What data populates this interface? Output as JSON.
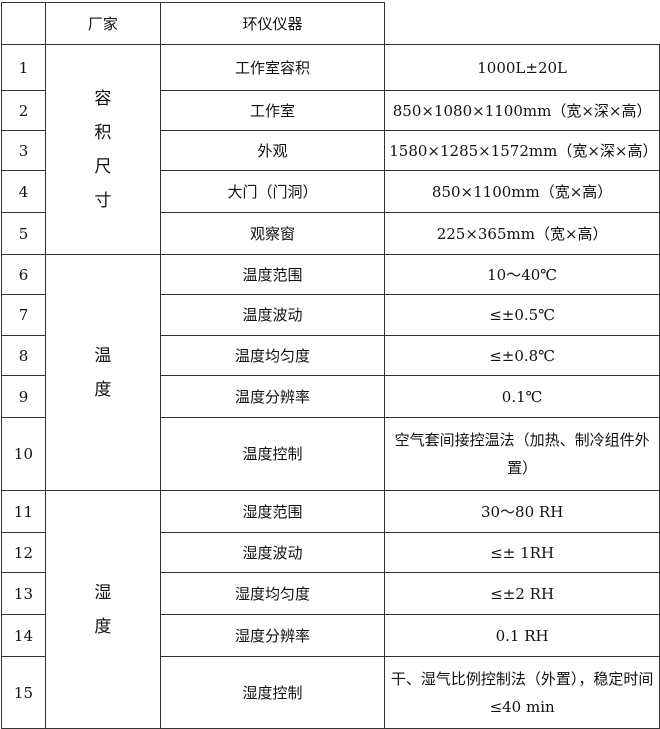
{
  "header": {
    "col1": "",
    "col2": "厂家",
    "col3": "环仪仪器",
    "col4": ""
  },
  "groups": [
    {
      "label": [
        "容",
        "积",
        "尺",
        "寸"
      ]
    },
    {
      "label": [
        "温",
        "度"
      ]
    },
    {
      "label": [
        "湿",
        "度"
      ]
    }
  ],
  "rows": [
    {
      "no": "1",
      "item": "工作室容积",
      "value": "1000L±20L"
    },
    {
      "no": "2",
      "item": "工作室",
      "value": "850×1080×1100mm（宽×深×高）"
    },
    {
      "no": "3",
      "item": "外观",
      "value": "1580×1285×1572mm（宽×深×高）"
    },
    {
      "no": "4",
      "item": "大门（门洞）",
      "value": "850×1100mm（宽×高）"
    },
    {
      "no": "5",
      "item": "观察窗",
      "value": "225×365mm（宽×高）"
    },
    {
      "no": "6",
      "item": "温度范围",
      "value": "10～40℃"
    },
    {
      "no": "7",
      "item": "温度波动",
      "value": "≤±0.5℃"
    },
    {
      "no": "8",
      "item": "温度均匀度",
      "value": "≤±0.8℃"
    },
    {
      "no": "9",
      "item": "温度分辨率",
      "value": "0.1℃"
    },
    {
      "no": "10",
      "item": "温度控制",
      "value": "空气套间接控温法（加热、制冷组件外置）"
    },
    {
      "no": "11",
      "item": "湿度范围",
      "value": "30～80  RH"
    },
    {
      "no": "12",
      "item": "湿度波动",
      "value": "≤± 1RH"
    },
    {
      "no": "13",
      "item": "湿度均匀度",
      "value": "≤±2 RH"
    },
    {
      "no": "14",
      "item": "湿度分辨率",
      "value": "0.1 RH"
    },
    {
      "no": "15",
      "item": "湿度控制",
      "value": "干、湿气比例控制法（外置），稳定时间≤40 min"
    }
  ]
}
